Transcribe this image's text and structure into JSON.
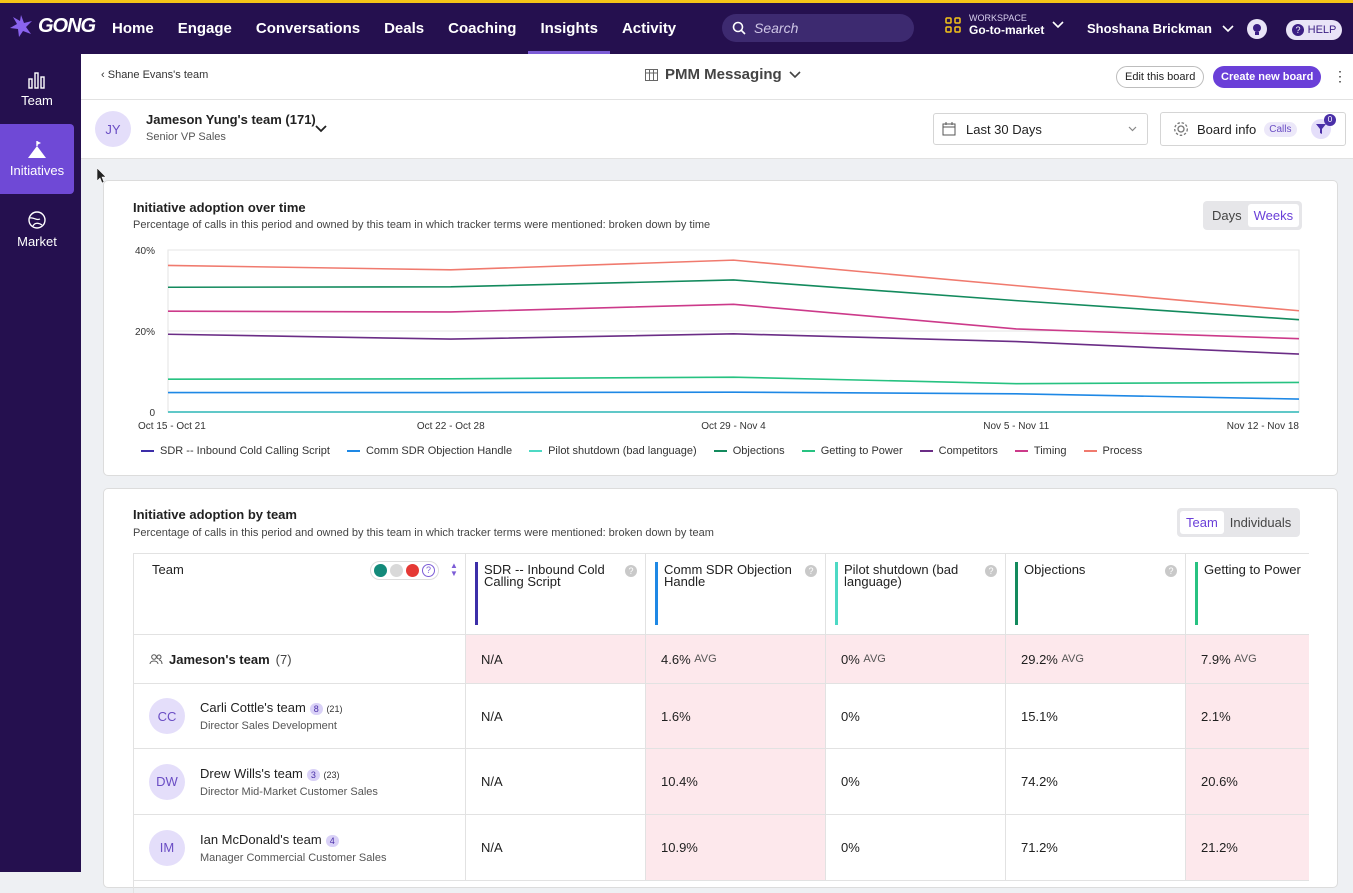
{
  "topbar": {
    "logo": "GONG",
    "nav": [
      "Home",
      "Engage",
      "Conversations",
      "Deals",
      "Coaching",
      "Insights",
      "Activity"
    ],
    "active_nav": "Insights",
    "search_placeholder": "Search",
    "workspace_label": "WORKSPACE",
    "workspace_value": "Go-to-market",
    "user": "Shoshana Brickman",
    "help": "HELP"
  },
  "sidebar": [
    {
      "label": "Team",
      "icon": "bar-chart-icon"
    },
    {
      "label": "Initiatives",
      "icon": "mountain-flag-icon",
      "active": true
    },
    {
      "label": "Market",
      "icon": "globe-icon"
    }
  ],
  "subbar": {
    "back": "Shane Evans's team",
    "board": "PMM Messaging",
    "edit": "Edit this board",
    "create": "Create new board"
  },
  "teambar": {
    "initials": "JY",
    "name": "Jameson Yung's team (171)",
    "title": "Senior VP Sales",
    "date": "Last 30 Days",
    "board_info": "Board info",
    "board_pill": "Calls",
    "filter_count": "0"
  },
  "card1": {
    "title": "Initiative adoption over time",
    "subtitle": "Percentage of calls in this period and owned by this team in which tracker terms were mentioned: broken down by time",
    "toggle": [
      "Days",
      "Weeks"
    ],
    "toggle_active": "Weeks"
  },
  "chart_data": {
    "type": "line",
    "x": [
      "Oct 15 - Oct 21",
      "Oct 22 - Oct 28",
      "Oct 29 - Nov 4",
      "Nov 5 - Nov 11",
      "Nov 12 - Nov 18"
    ],
    "ylim": [
      0,
      40
    ],
    "yticks": [
      "0",
      "20%",
      "40%"
    ],
    "grid": true,
    "legend_position": "bottom",
    "series": [
      {
        "name": "SDR -- Inbound Cold Calling Script",
        "color": "#3c2ea8",
        "values": [
          0,
          0,
          0,
          0,
          0
        ]
      },
      {
        "name": "Comm SDR Objection Handle",
        "color": "#1e88e5",
        "values": [
          4.8,
          4.8,
          4.9,
          4.5,
          3.2
        ]
      },
      {
        "name": "Pilot shutdown (bad language)",
        "color": "#4dd9c4",
        "values": [
          0,
          0,
          0,
          0,
          0
        ]
      },
      {
        "name": "Objections",
        "color": "#138a5d",
        "values": [
          30.8,
          30.9,
          32.6,
          27.5,
          22.8
        ]
      },
      {
        "name": "Getting to Power",
        "color": "#27c281",
        "values": [
          8.1,
          8.2,
          8.6,
          7.0,
          7.3
        ]
      },
      {
        "name": "Competitors",
        "color": "#6b2d86",
        "values": [
          19.2,
          18.0,
          19.3,
          17.4,
          14.3
        ]
      },
      {
        "name": "Timing",
        "color": "#cc3a8a",
        "values": [
          24.9,
          24.7,
          26.6,
          20.5,
          18.1
        ]
      },
      {
        "name": "Process",
        "color": "#f07a6e",
        "values": [
          36.2,
          35.1,
          37.5,
          31.2,
          25.0
        ]
      }
    ]
  },
  "card2": {
    "title": "Initiative adoption by team",
    "subtitle": "Percentage of calls in this period and owned by this team in which tracker terms were mentioned: broken down by team",
    "toggle": [
      "Team",
      "Individuals"
    ],
    "toggle_active": "Team",
    "team_header": "Team",
    "columns": [
      {
        "name": "SDR -- Inbound Cold Calling Script",
        "color": "#3c2ea8"
      },
      {
        "name": "Comm SDR Objection Handle",
        "color": "#1e88e5"
      },
      {
        "name": "Pilot shutdown (bad language)",
        "color": "#4dd9c4"
      },
      {
        "name": "Objections",
        "color": "#138a5d"
      },
      {
        "name": "Getting to Power",
        "color": "#27c281"
      }
    ],
    "summary": {
      "name": "Jameson's team",
      "count": "(7)",
      "values": [
        "N/A",
        "4.6%",
        "0%",
        "29.2%",
        "7.9%"
      ],
      "avg": "AVG"
    },
    "rows": [
      {
        "initials": "CC",
        "name": "Carli Cottle's team",
        "badge": "8",
        "count": "(21)",
        "title": "Director Sales Development",
        "values": [
          "N/A",
          "1.6%",
          "0%",
          "15.1%",
          "2.1%"
        ]
      },
      {
        "initials": "DW",
        "name": "Drew Wills's team",
        "badge": "3",
        "count": "(23)",
        "title": "Director Mid-Market Customer Sales",
        "values": [
          "N/A",
          "10.4%",
          "0%",
          "74.2%",
          "20.6%"
        ]
      },
      {
        "initials": "IM",
        "name": "Ian McDonald's team",
        "badge": "4",
        "count": "",
        "title": "Manager Commercial Customer Sales",
        "values": [
          "N/A",
          "10.9%",
          "0%",
          "71.2%",
          "21.2%"
        ]
      }
    ]
  }
}
